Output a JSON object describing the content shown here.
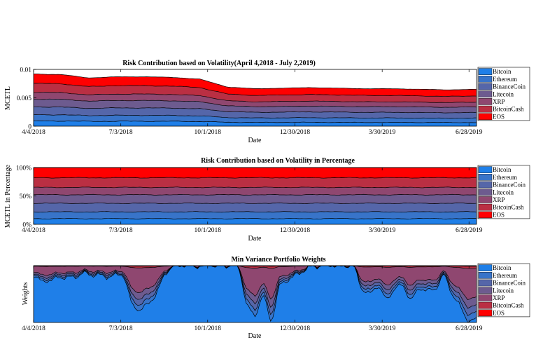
{
  "colors": {
    "Bitcoin": "#1f7fe8",
    "Ethereum": "#3874c9",
    "BinanceCoin": "#5566a9",
    "Litecoin": "#6d5b8f",
    "XRP": "#8f4770",
    "BitcoinCash": "#ba2f43",
    "EOS": "#ff0000"
  },
  "chart_data": [
    {
      "type": "area",
      "title": "Risk Contribution based on Volatility(April 4,2018 - July 2,2019)",
      "xlabel": "Date",
      "ylabel": "MCETL",
      "x_ticks": [
        "4/4/2018",
        "7/3/2018",
        "10/1/2018",
        "12/30/2018",
        "3/30/2019",
        "6/28/2019"
      ],
      "y_ticks": [
        "0",
        "0.005",
        "0.01"
      ],
      "ylim": [
        0,
        0.01
      ],
      "legend_position": "right",
      "series_names": [
        "Bitcoin",
        "Ethereum",
        "BinanceCoin",
        "Litecoin",
        "XRP",
        "BitcoinCash",
        "EOS"
      ],
      "x": [
        "4/4/2018",
        "5/4/2018",
        "6/3/2018",
        "7/3/2018",
        "8/2/2018",
        "9/1/2018",
        "10/1/2018",
        "10/31/2018",
        "11/30/2018",
        "12/30/2018",
        "1/29/2019",
        "2/28/2019",
        "3/30/2019",
        "4/29/2019",
        "5/29/2019",
        "6/28/2019",
        "7/2/2019"
      ],
      "total": [
        0.0092,
        0.0091,
        0.0085,
        0.0087,
        0.0087,
        0.0086,
        0.0083,
        0.0069,
        0.0066,
        0.0067,
        0.0068,
        0.0067,
        0.0066,
        0.0066,
        0.0065,
        0.0064,
        0.0065
      ],
      "cumulative_share": [
        0.1,
        0.22,
        0.37,
        0.52,
        0.65,
        0.82,
        1.0
      ]
    },
    {
      "type": "area",
      "title": "Risk Contribution based on Volatility in Percentage",
      "xlabel": "Date",
      "ylabel": "MCETL in Percentage",
      "x_ticks": [
        "4/4/2018",
        "7/3/2018",
        "10/1/2018",
        "12/30/2018",
        "3/30/2019",
        "6/28/2019"
      ],
      "y_ticks": [
        "0%",
        "50%",
        "100%"
      ],
      "ylim": [
        0,
        100
      ],
      "legend_position": "right",
      "series_names": [
        "Bitcoin",
        "Ethereum",
        "BinanceCoin",
        "Litecoin",
        "XRP",
        "BitcoinCash",
        "EOS"
      ],
      "cumulative_percent": [
        10,
        22,
        37,
        52,
        65,
        82,
        100
      ]
    },
    {
      "type": "area",
      "title": "Min Variance Portfolio Weights",
      "xlabel": "Date",
      "ylabel": "Weights",
      "x_ticks": [
        "4/4/2018",
        "7/3/2018",
        "10/1/2018",
        "12/30/2018",
        "3/30/2019",
        "6/28/2019"
      ],
      "ylim": [
        0,
        1
      ],
      "legend_position": "right",
      "series_names": [
        "Bitcoin",
        "Ethereum",
        "BinanceCoin",
        "Litecoin",
        "XRP",
        "BitcoinCash",
        "EOS"
      ],
      "bitcoin_weight": [
        0.85,
        0.7,
        0.75,
        0.8,
        0.78,
        0.8,
        0.88,
        0.82,
        0.85,
        0.8,
        0.82,
        0.85,
        0.3,
        0.2,
        0.35,
        0.5,
        0.85,
        1.0,
        1.0,
        1.0,
        1.0,
        1.0,
        1.0,
        1.0,
        1.0,
        1.0,
        0.3,
        0.1,
        0.5,
        0.0,
        0.65,
        0.75,
        0.85,
        0.9,
        1.0,
        1.0,
        1.0,
        1.0,
        1.0,
        1.0,
        0.6,
        0.5,
        0.65,
        0.4,
        0.6,
        0.65,
        0.4,
        0.6,
        0.55,
        0.6,
        0.85,
        0.5,
        0.3,
        0.0,
        0.05
      ]
    }
  ]
}
